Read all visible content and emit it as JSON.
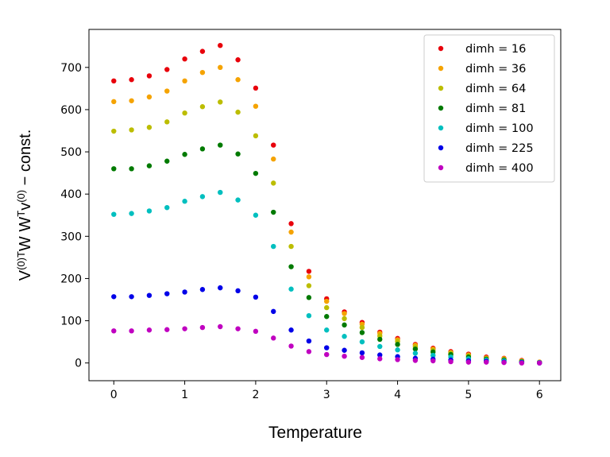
{
  "chart_data": {
    "type": "scatter",
    "title": "",
    "xlabel": "Temperature",
    "ylabel": {
      "parts": [
        {
          "text": "V",
          "sup": false
        },
        {
          "text": "(0)T",
          "sup": true
        },
        {
          "text": "W W",
          "sup": false
        },
        {
          "text": "T",
          "sup": true
        },
        {
          "text": "v",
          "sup": false
        },
        {
          "text": "(0)",
          "sup": true
        },
        {
          "text": " − const.",
          "sup": false
        }
      ]
    },
    "xlim": [
      -0.35,
      6.3
    ],
    "ylim": [
      -42,
      790
    ],
    "xticks": [
      0,
      1,
      2,
      3,
      4,
      5,
      6
    ],
    "yticks": [
      0,
      100,
      200,
      300,
      400,
      500,
      600,
      700
    ],
    "legend_position": "top-right",
    "x": [
      0,
      0.25,
      0.5,
      0.75,
      1.0,
      1.25,
      1.5,
      1.75,
      2.0,
      2.25,
      2.5,
      2.75,
      3.0,
      3.25,
      3.5,
      3.75,
      4.0,
      4.25,
      4.5,
      4.75,
      5.0,
      5.25,
      5.5,
      5.75,
      6.0
    ],
    "series": [
      {
        "name": "dimh = 16",
        "color": "#e8000b",
        "values": [
          668,
          671,
          680,
          695,
          720,
          738,
          752,
          718,
          651,
          516,
          330,
          217,
          152,
          121,
          96,
          73,
          58,
          44,
          35,
          27,
          21,
          14,
          11,
          6,
          2
        ]
      },
      {
        "name": "dimh = 36",
        "color": "#f5a300",
        "values": [
          619,
          621,
          630,
          644,
          668,
          688,
          700,
          671,
          608,
          483,
          310,
          204,
          146,
          117,
          92,
          70,
          55,
          42,
          33,
          25,
          19,
          12,
          10,
          5,
          2
        ]
      },
      {
        "name": "dimh = 64",
        "color": "#bcbd00",
        "values": [
          549,
          552,
          558,
          571,
          592,
          607,
          618,
          594,
          538,
          426,
          276,
          183,
          131,
          105,
          84,
          64,
          51,
          38,
          30,
          23,
          17,
          11,
          8,
          4,
          1
        ]
      },
      {
        "name": "dimh = 81",
        "color": "#007a00",
        "values": [
          460,
          460,
          467,
          478,
          494,
          507,
          516,
          495,
          449,
          357,
          228,
          155,
          110,
          90,
          72,
          56,
          44,
          33,
          26,
          20,
          14,
          9,
          7,
          3,
          1
        ]
      },
      {
        "name": "dimh = 100",
        "color": "#00bfbf",
        "values": [
          352,
          354,
          360,
          368,
          383,
          394,
          404,
          386,
          350,
          276,
          175,
          112,
          78,
          63,
          50,
          39,
          31,
          23,
          18,
          14,
          10,
          7,
          5,
          2,
          1
        ]
      },
      {
        "name": "dimh = 225",
        "color": "#0000e8",
        "values": [
          157,
          157,
          160,
          164,
          168,
          174,
          178,
          171,
          156,
          122,
          78,
          52,
          36,
          30,
          24,
          19,
          15,
          11,
          9,
          7,
          5,
          4,
          2,
          1,
          0
        ]
      },
      {
        "name": "dimh = 400",
        "color": "#c000c0",
        "values": [
          76,
          76,
          78,
          79,
          81,
          84,
          86,
          81,
          75,
          59,
          40,
          27,
          20,
          16,
          13,
          10,
          8,
          6,
          5,
          3,
          2,
          2,
          1,
          0,
          0
        ]
      }
    ]
  }
}
